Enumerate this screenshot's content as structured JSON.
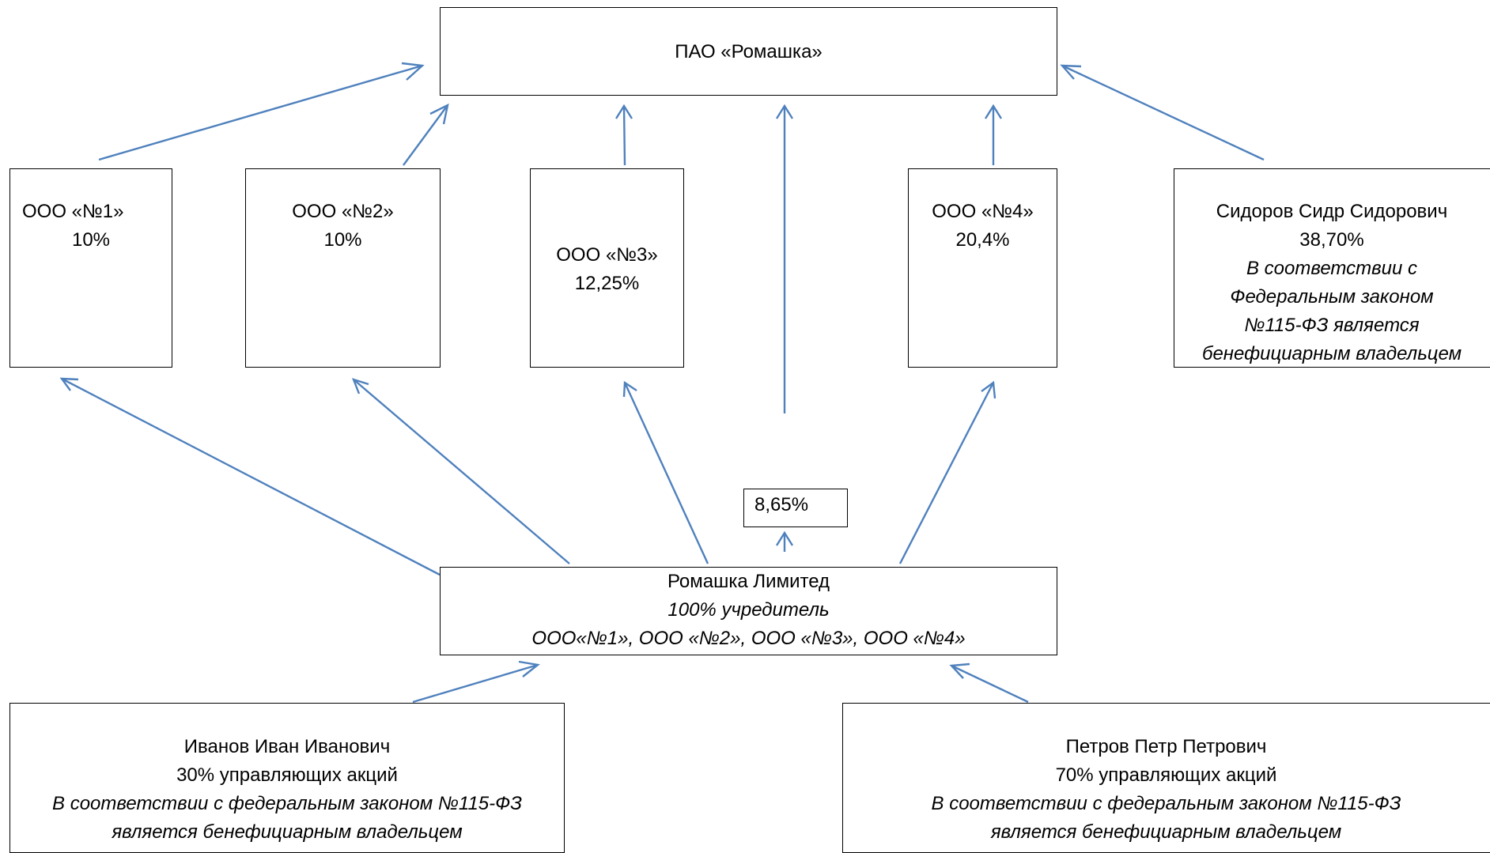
{
  "top": {
    "name": "ПАО «Ромашка»"
  },
  "subsidiaries": [
    {
      "name": "ООО «№1»",
      "share": "10%"
    },
    {
      "name": "ООО «№2»",
      "share": "10%"
    },
    {
      "name": "ООО «№3»",
      "share": "12,25%"
    },
    {
      "name": "ООО «№4»",
      "share": "20,4%"
    }
  ],
  "sidorov": {
    "name": "Сидоров Сидр Сидорович",
    "share": "38,70%",
    "note_lines": [
      "В соответствии с",
      "Федеральным законом",
      "№115-ФЗ является",
      "бенефициарным владельцем"
    ]
  },
  "direct_share": "8,65%",
  "limited": {
    "name": "Ромашка Лимитед",
    "role": "100% учредитель",
    "companies": "ООО«№1», ООО «№2», ООО «№3», ООО «№4»"
  },
  "ivanov": {
    "name": "Иванов Иван Иванович",
    "share": "30%  управляющих акций",
    "note_1": "В соответствии с федеральным законом №115-ФЗ",
    "note_2": "является бенефициарным владельцем"
  },
  "petrov": {
    "name": "Петров Петр Петрович",
    "share": "70%  управляющих акций",
    "note_1": "В соответствии с федеральным законом  №115-ФЗ",
    "note_2": "является бенефициарным владельцем"
  },
  "colors": {
    "arrow": "#4f81bd",
    "border": "#000000"
  }
}
